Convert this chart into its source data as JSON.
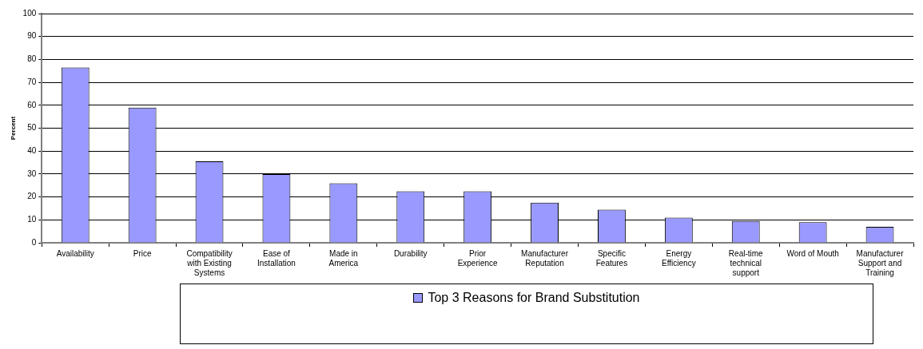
{
  "chart_data": {
    "type": "bar",
    "ylabel": "Percent",
    "categories": [
      "Availability",
      "Price",
      "Compatibility with Existing Systems",
      "Ease of Installation",
      "Made in America",
      "Durability",
      "Prior Experience",
      "Manufacturer Reputation",
      "Specific Features",
      "Energy Efficiency",
      "Real-time technical support",
      "Word of Mouth",
      "Manufacturer Support and Training"
    ],
    "series": [
      {
        "name": "Top 3 Reasons for Brand Substitution",
        "color": "#9999ff",
        "values": [
          76.5,
          59,
          35.5,
          30,
          26,
          22.5,
          22.5,
          17.5,
          14.5,
          11,
          9.5,
          9,
          7
        ]
      }
    ],
    "ylim": [
      0,
      100
    ],
    "yticks": [
      0,
      10,
      20,
      30,
      40,
      50,
      60,
      70,
      80,
      90,
      100
    ],
    "grid": "y",
    "legend": "bottom"
  }
}
